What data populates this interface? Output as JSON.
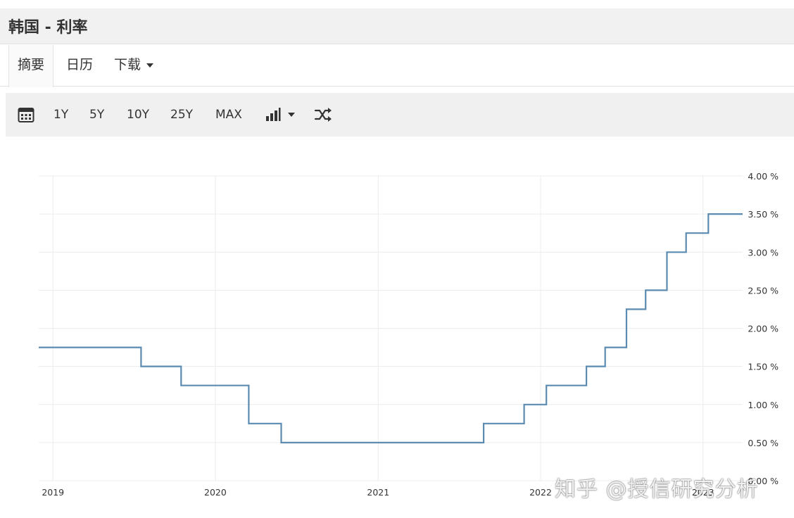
{
  "page": {
    "title": "韩国 - 利率"
  },
  "tabs": [
    {
      "label": "摘要",
      "active": true
    },
    {
      "label": "日历",
      "active": false
    },
    {
      "label": "下载",
      "active": false
    }
  ],
  "toolbar": {
    "icons": [
      "calendar-icon",
      "bar-chart-icon",
      "caret-down-icon",
      "shuffle-icon"
    ],
    "ranges": [
      "1Y",
      "5Y",
      "10Y",
      "25Y",
      "MAX"
    ]
  },
  "chart_data": {
    "type": "line",
    "step": "after",
    "title": "",
    "xlabel": "",
    "ylabel": "",
    "x_ticks": [
      "2019",
      "2020",
      "2021",
      "2022",
      "2023"
    ],
    "y_ticks": [
      "0.00 %",
      "0.50 %",
      "1.00 %",
      "1.50 %",
      "2.00 %",
      "2.50 %",
      "3.00 %",
      "3.50 %",
      "4.00 %"
    ],
    "ylim": [
      0,
      4
    ],
    "xlim": [
      "2018-11-30",
      "2023-03-31"
    ],
    "y_axis_position": "right",
    "grid": true,
    "color": "#5b8bb0",
    "points": [
      {
        "date": "2018-11-30",
        "value": 1.75
      },
      {
        "date": "2019-07-18",
        "value": 1.5
      },
      {
        "date": "2019-10-16",
        "value": 1.25
      },
      {
        "date": "2020-03-16",
        "value": 0.75
      },
      {
        "date": "2020-05-28",
        "value": 0.5
      },
      {
        "date": "2021-08-26",
        "value": 0.75
      },
      {
        "date": "2021-11-25",
        "value": 1.0
      },
      {
        "date": "2022-01-14",
        "value": 1.25
      },
      {
        "date": "2022-04-14",
        "value": 1.5
      },
      {
        "date": "2022-05-26",
        "value": 1.75
      },
      {
        "date": "2022-07-13",
        "value": 2.25
      },
      {
        "date": "2022-08-25",
        "value": 2.5
      },
      {
        "date": "2022-10-12",
        "value": 3.0
      },
      {
        "date": "2022-11-24",
        "value": 3.25
      },
      {
        "date": "2023-01-13",
        "value": 3.5
      },
      {
        "date": "2023-03-31",
        "value": 3.5
      }
    ]
  },
  "watermark": "知乎 @授信研究分析"
}
